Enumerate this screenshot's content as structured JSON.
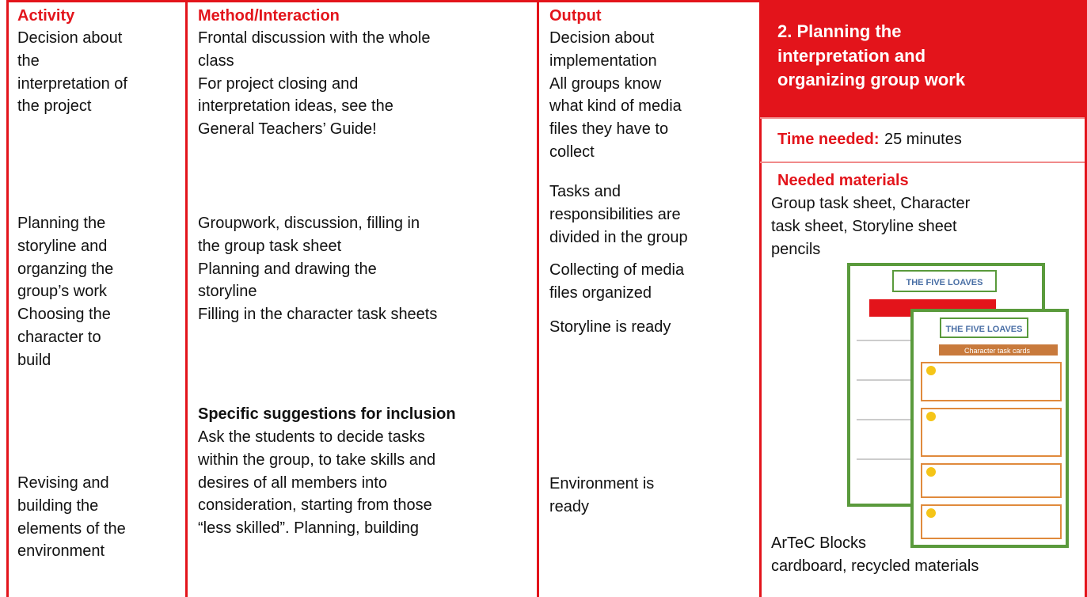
{
  "activity": {
    "heading": "Activity",
    "blocks": [
      [
        "Decision about",
        "the",
        "interpretation of",
        "the project"
      ],
      [
        "Planning the",
        "storyline and",
        "organzing the",
        "group’s work",
        "Choosing the",
        "character to",
        "build"
      ],
      [
        "Revising and",
        "building the",
        "elements of the",
        "environment"
      ]
    ]
  },
  "method": {
    "heading": "Method/Interaction",
    "blocks": [
      [
        "Frontal discussion with the whole",
        "class",
        "For project closing and",
        "interpretation ideas, see the",
        "General Teachers’ Guide!"
      ],
      [
        "Groupwork, discussion, filling in",
        "the group task sheet",
        "Planning and drawing the",
        "storyline",
        "Filling in the character task sheets"
      ]
    ],
    "inclusion": {
      "heading": "Specific suggestions for inclusion",
      "lines": [
        "Ask the students to decide tasks",
        "within the group, to take skills and",
        "desires of all members into",
        "consideration, starting from those",
        "“less skilled”. Planning, building"
      ]
    }
  },
  "output": {
    "heading": "Output",
    "blocks": [
      [
        "Decision about",
        "implementation",
        "All groups know",
        "what kind of media",
        "files they have to",
        "collect"
      ],
      [
        "Tasks and",
        "responsibilities are",
        "divided in the group"
      ],
      [
        "Collecting of media",
        "files organized"
      ],
      [
        "Storyline is ready"
      ],
      [
        "Environment is",
        "ready"
      ]
    ]
  },
  "panel": {
    "title": [
      "2. Planning the",
      "interpretation and",
      "organizing group work"
    ],
    "time_label": "Time needed:",
    "time_value": "25 minutes",
    "materials_heading": "Needed materials",
    "materials": [
      "Group task sheet, Character",
      "task sheet, Storyline sheet",
      "pencils"
    ],
    "materials_after": [
      "ArTeC Blocks",
      "cardboard, recycled materials"
    ],
    "image": {
      "sheet_title": "THE FIVE LOAVES",
      "card_heading": "Character task cards"
    }
  }
}
